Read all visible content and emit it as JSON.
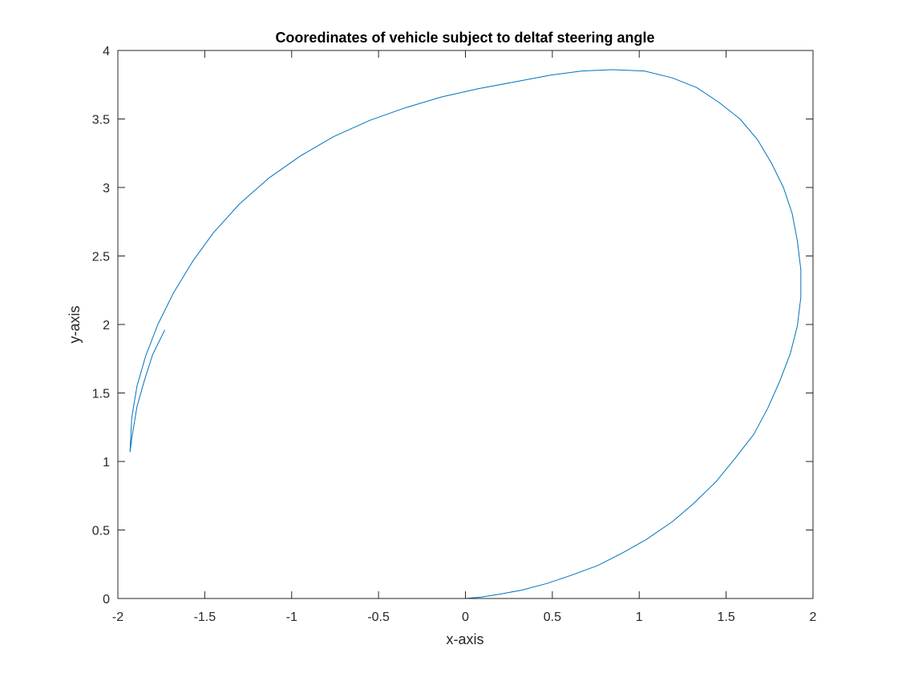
{
  "chart_data": {
    "type": "line",
    "title": "Cooredinates of vehicle subject to deltaf steering angle",
    "xlabel": "x-axis",
    "ylabel": "y-axis",
    "xlim": [
      -2,
      2
    ],
    "ylim": [
      0,
      4
    ],
    "xticks": [
      -2,
      -1.5,
      -1,
      -0.5,
      0,
      0.5,
      1,
      1.5,
      2
    ],
    "yticks": [
      0,
      0.5,
      1,
      1.5,
      2,
      2.5,
      3,
      3.5,
      4
    ],
    "xtick_labels": [
      "-2",
      "-1.5",
      "-1",
      "-0.5",
      "0",
      "0.5",
      "1",
      "1.5",
      "2"
    ],
    "ytick_labels": [
      "0",
      "0.5",
      "1",
      "1.5",
      "2",
      "2.5",
      "3",
      "3.5",
      "4"
    ],
    "grid": false,
    "legend": "none",
    "color": "#0072BD",
    "series": [
      {
        "x": [
          0,
          0.09,
          0.19,
          0.32,
          0.47,
          0.61,
          0.76,
          0.9,
          1.04,
          1.19,
          1.31,
          1.44,
          1.55,
          1.66,
          1.74,
          1.81,
          1.87,
          1.91,
          1.93,
          1.93,
          1.91,
          1.88,
          1.83,
          1.76,
          1.68,
          1.58,
          1.46,
          1.33,
          1.19,
          1.03,
          0.85,
          0.67,
          0.49,
          0.28,
          0.07,
          -0.14,
          -0.35,
          -0.55,
          -0.76,
          -0.95,
          -1.13,
          -1.3,
          -1.45,
          -1.57,
          -1.68,
          -1.77,
          -1.84,
          -1.89,
          -1.92,
          -1.93,
          -1.92,
          -1.89,
          -1.85,
          -1.8,
          -1.73
        ],
        "y": [
          0,
          0.01,
          0.03,
          0.06,
          0.11,
          0.17,
          0.24,
          0.33,
          0.43,
          0.56,
          0.69,
          0.85,
          1.02,
          1.2,
          1.39,
          1.59,
          1.79,
          1.99,
          2.2,
          2.4,
          2.61,
          2.81,
          3.0,
          3.18,
          3.35,
          3.5,
          3.62,
          3.73,
          3.8,
          3.85,
          3.86,
          3.85,
          3.82,
          3.77,
          3.72,
          3.66,
          3.58,
          3.49,
          3.37,
          3.23,
          3.07,
          2.88,
          2.67,
          2.46,
          2.23,
          2.0,
          1.77,
          1.55,
          1.32,
          1.07,
          1.17,
          1.4,
          1.58,
          1.78,
          1.96
        ]
      }
    ]
  }
}
